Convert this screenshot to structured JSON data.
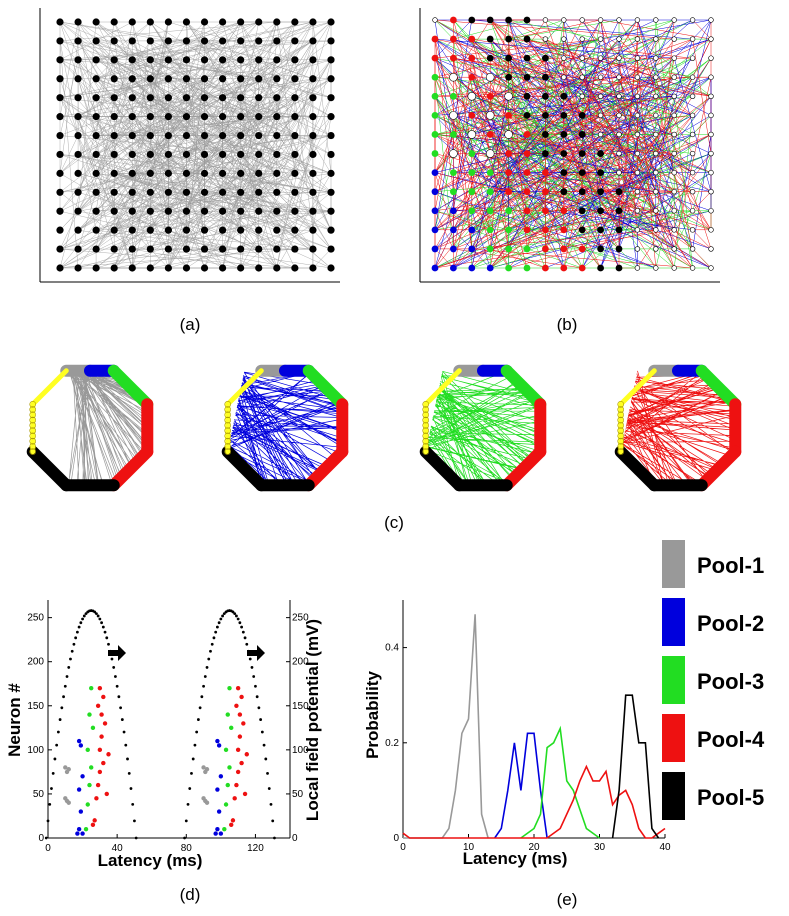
{
  "panel_labels": [
    "(a)",
    "(b)",
    "(c)",
    "(d)",
    "(e)"
  ],
  "colors": {
    "pool1": "#999999",
    "pool2": "#0000dd",
    "pool3": "#22dd22",
    "pool4": "#ee1111",
    "pool5": "#000000",
    "yellow": "#ffff22",
    "edge": "#9a9a9a"
  },
  "legend": [
    {
      "label": "Pool-1",
      "color": "#999999"
    },
    {
      "label": "Pool-2",
      "color": "#0000dd"
    },
    {
      "label": "Pool-3",
      "color": "#22dd22"
    },
    {
      "label": "Pool-4",
      "color": "#ee1111"
    },
    {
      "label": "Pool-5",
      "color": "#000000"
    }
  ],
  "chart_data": [
    {
      "id": "a",
      "type": "scatter",
      "title": "",
      "grid_size": [
        16,
        14
      ],
      "node_color": "black"
    },
    {
      "id": "b",
      "type": "scatter",
      "title": "",
      "grid_size": [
        16,
        14
      ]
    },
    {
      "id": "c",
      "type": "network",
      "title": "",
      "panels": [
        "Pool-1",
        "Pool-2",
        "Pool-3",
        "Pool-4"
      ]
    },
    {
      "id": "d",
      "type": "scatter",
      "xlabel": "Latency (ms)",
      "ylabel": "Neuron #",
      "y2label": "Local field potential (mV)",
      "xlim": [
        0,
        140
      ],
      "ylim": [
        0,
        270
      ],
      "xticks": [
        0,
        40,
        80,
        120
      ],
      "yticks": [
        0,
        50,
        100,
        150,
        200,
        250
      ],
      "y2ticks": [
        0,
        50,
        100,
        150,
        200,
        250
      ],
      "lfp_peaks": [
        25,
        105
      ],
      "raster_series": [
        {
          "name": "Pool-1",
          "points": [
            [
              10,
              45
            ],
            [
              11,
              42
            ],
            [
              12,
              40
            ],
            [
              10,
              80
            ],
            [
              11,
              75
            ],
            [
              12,
              78
            ]
          ]
        },
        {
          "name": "Pool-2",
          "points": [
            [
              17,
              5
            ],
            [
              18,
              10
            ],
            [
              20,
              5
            ],
            [
              19,
              30
            ],
            [
              18,
              55
            ],
            [
              20,
              70
            ],
            [
              19,
              105
            ],
            [
              18,
              110
            ]
          ]
        },
        {
          "name": "Pool-3",
          "points": [
            [
              22,
              10
            ],
            [
              23,
              38
            ],
            [
              24,
              60
            ],
            [
              25,
              80
            ],
            [
              23,
              100
            ],
            [
              26,
              125
            ],
            [
              24,
              140
            ],
            [
              25,
              170
            ]
          ]
        },
        {
          "name": "Pool-4",
          "points": [
            [
              27,
              20
            ],
            [
              28,
              45
            ],
            [
              29,
              60
            ],
            [
              30,
              75
            ],
            [
              32,
              85
            ],
            [
              30,
              100
            ],
            [
              31,
              115
            ],
            [
              33,
              130
            ],
            [
              31,
              140
            ],
            [
              29,
              150
            ],
            [
              32,
              160
            ],
            [
              30,
              170
            ],
            [
              26,
              15
            ],
            [
              34,
              50
            ],
            [
              35,
              95
            ]
          ]
        }
      ]
    },
    {
      "id": "e",
      "type": "line",
      "xlabel": "Latency (ms)",
      "ylabel": "Probability",
      "xlim": [
        0,
        40
      ],
      "ylim": [
        0,
        0.5
      ],
      "xticks": [
        0,
        10,
        20,
        30,
        40
      ],
      "yticks": [
        0,
        0.2,
        0.4
      ],
      "series": [
        {
          "name": "Pool-1",
          "x": [
            0,
            6,
            7,
            8,
            9,
            10,
            11,
            12,
            13
          ],
          "y": [
            0,
            0,
            0.02,
            0.1,
            0.22,
            0.25,
            0.47,
            0.05,
            0
          ]
        },
        {
          "name": "Pool-2",
          "x": [
            14,
            15,
            16,
            17,
            18,
            19,
            20,
            21,
            22
          ],
          "y": [
            0,
            0.02,
            0.1,
            0.2,
            0.1,
            0.22,
            0.22,
            0.1,
            0
          ]
        },
        {
          "name": "Pool-3",
          "x": [
            18,
            20,
            21,
            22,
            23,
            24,
            25,
            26,
            28,
            30
          ],
          "y": [
            0,
            0.02,
            0.05,
            0.19,
            0.2,
            0.23,
            0.12,
            0.1,
            0.02,
            0
          ]
        },
        {
          "name": "Pool-4",
          "x": [
            0,
            1,
            15,
            22,
            24,
            26,
            27,
            28,
            29,
            30,
            31,
            32,
            33,
            34,
            35,
            36,
            37,
            38,
            39,
            40
          ],
          "y": [
            0.01,
            0,
            0,
            0,
            0.02,
            0.08,
            0.12,
            0.15,
            0.12,
            0.12,
            0.14,
            0.07,
            0.09,
            0.1,
            0.07,
            0.02,
            0,
            0,
            0.01,
            0.02
          ]
        },
        {
          "name": "Pool-5",
          "x": [
            32,
            33,
            34,
            35,
            36,
            37,
            38,
            39
          ],
          "y": [
            0,
            0.1,
            0.3,
            0.3,
            0.2,
            0.2,
            0.02,
            0
          ]
        }
      ]
    }
  ]
}
